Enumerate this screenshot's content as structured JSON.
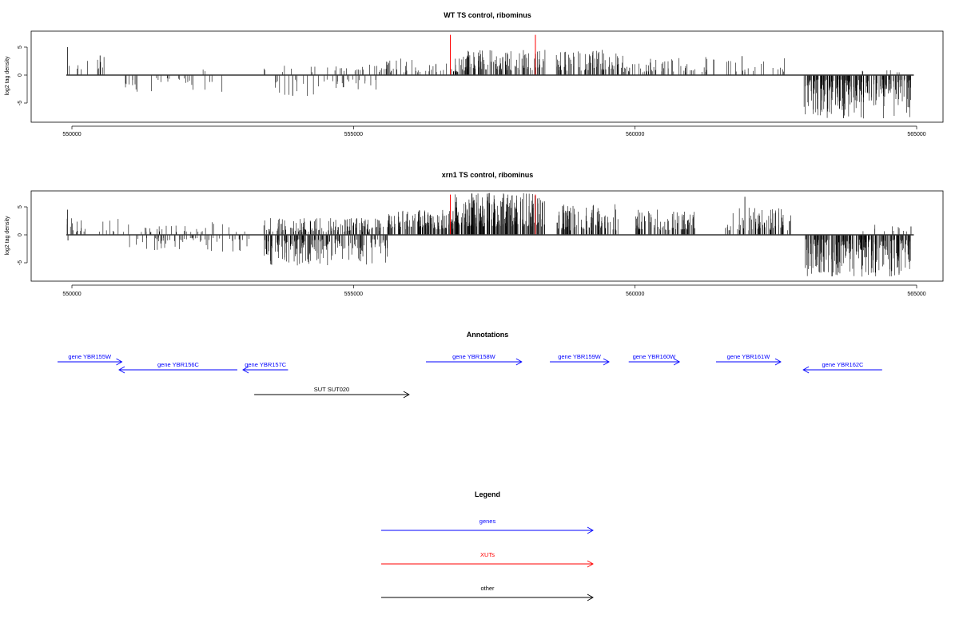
{
  "chart_data": [
    {
      "type": "bar",
      "title": "WT TS control, ribominus",
      "xlabel": "",
      "ylabel": "log2 tag density",
      "xlim": [
        549850,
        564950
      ],
      "ylim": [
        -8,
        7.5
      ],
      "x_ticks": [
        550000,
        555000,
        560000,
        565000
      ],
      "x_tick_labels": [
        "550000",
        "555000",
        "560000",
        "565000"
      ],
      "y_ticks": [
        -5,
        0,
        5
      ],
      "y_tick_labels": [
        "-5",
        "0",
        "5"
      ],
      "grid": false,
      "density_segments": [
        {
          "start": 549900,
          "end": 550700,
          "sign": 1,
          "density": 0.22,
          "min": 1,
          "max": 3.5
        },
        {
          "start": 550900,
          "end": 552700,
          "sign": -1,
          "density": 0.22,
          "min": 0.5,
          "max": 3
        },
        {
          "start": 552300,
          "end": 552400,
          "sign": 1,
          "density": 0.3,
          "min": 0.5,
          "max": 1
        },
        {
          "start": 553500,
          "end": 555400,
          "sign": -1,
          "density": 0.25,
          "min": 0.8,
          "max": 3.8
        },
        {
          "start": 553400,
          "end": 555600,
          "sign": 1,
          "density": 0.18,
          "min": 0.5,
          "max": 2
        },
        {
          "start": 555500,
          "end": 556900,
          "sign": 1,
          "density": 0.5,
          "min": 0.5,
          "max": 3
        },
        {
          "start": 556900,
          "end": 558400,
          "sign": 1,
          "density": 1.1,
          "min": 0.8,
          "max": 4.5
        },
        {
          "start": 558600,
          "end": 559700,
          "sign": 1,
          "density": 1.0,
          "min": 0.8,
          "max": 4.5
        },
        {
          "start": 559700,
          "end": 560900,
          "sign": 1,
          "density": 0.55,
          "min": 0.5,
          "max": 3.5
        },
        {
          "start": 560900,
          "end": 562700,
          "sign": 1,
          "density": 0.25,
          "min": 0.5,
          "max": 3.3
        },
        {
          "start": 563000,
          "end": 564900,
          "sign": -1,
          "density": 1.6,
          "min": 0.8,
          "max": 7.8
        },
        {
          "start": 564000,
          "end": 564900,
          "sign": 1,
          "density": 0.1,
          "min": 0.5,
          "max": 1
        }
      ],
      "spikes": [
        {
          "x": 549920,
          "y": 5
        },
        {
          "x": 550500,
          "y": 3.5
        },
        {
          "x": 553920,
          "y": -3.7
        },
        {
          "x": 556720,
          "y": 7.2,
          "color": "#ff0000"
        },
        {
          "x": 558230,
          "y": 7.2,
          "color": "#ff0000"
        },
        {
          "x": 561900,
          "y": 3.4
        },
        {
          "x": 563700,
          "y": -7.7
        }
      ]
    },
    {
      "type": "bar",
      "title": "xrn1 TS control, ribominus",
      "xlabel": "",
      "ylabel": "log2 tag density",
      "xlim": [
        549850,
        564950
      ],
      "ylim": [
        -8,
        7.5
      ],
      "x_ticks": [
        550000,
        555000,
        560000,
        565000
      ],
      "x_tick_labels": [
        "550000",
        "555000",
        "560000",
        "565000"
      ],
      "y_ticks": [
        -5,
        0,
        5
      ],
      "y_tick_labels": [
        "-5",
        "0",
        "5"
      ],
      "grid": false,
      "density_segments": [
        {
          "start": 549900,
          "end": 551000,
          "sign": 1,
          "density": 0.28,
          "min": 0.5,
          "max": 3
        },
        {
          "start": 551000,
          "end": 553200,
          "sign": -1,
          "density": 0.38,
          "min": 0.5,
          "max": 3
        },
        {
          "start": 551000,
          "end": 553200,
          "sign": 1,
          "density": 0.2,
          "min": 0.5,
          "max": 2.5
        },
        {
          "start": 553400,
          "end": 555600,
          "sign": -1,
          "density": 1.1,
          "min": 0.8,
          "max": 5.5
        },
        {
          "start": 553400,
          "end": 555600,
          "sign": 1,
          "density": 0.9,
          "min": 0.5,
          "max": 3
        },
        {
          "start": 555600,
          "end": 556800,
          "sign": 1,
          "density": 1.5,
          "min": 1,
          "max": 4.5
        },
        {
          "start": 556800,
          "end": 558400,
          "sign": 1,
          "density": 2.0,
          "min": 1.5,
          "max": 7.5
        },
        {
          "start": 558600,
          "end": 559700,
          "sign": 1,
          "density": 1.2,
          "min": 0.8,
          "max": 5.5
        },
        {
          "start": 560000,
          "end": 561100,
          "sign": 1,
          "density": 1.1,
          "min": 0.8,
          "max": 4.5
        },
        {
          "start": 561600,
          "end": 562800,
          "sign": 1,
          "density": 0.9,
          "min": 0.8,
          "max": 5
        },
        {
          "start": 563000,
          "end": 564900,
          "sign": -1,
          "density": 1.8,
          "min": 0.8,
          "max": 7.5
        },
        {
          "start": 564000,
          "end": 564900,
          "sign": 1,
          "density": 0.15,
          "min": 0.5,
          "max": 2
        }
      ],
      "spikes": [
        {
          "x": 549920,
          "y": 4.5
        },
        {
          "x": 549930,
          "y": -1
        },
        {
          "x": 556720,
          "y": 7.2,
          "color": "#ff0000"
        },
        {
          "x": 558230,
          "y": 7.2,
          "color": "#ff0000"
        },
        {
          "x": 557100,
          "y": 7.4
        },
        {
          "x": 561950,
          "y": 6.8
        },
        {
          "x": 563500,
          "y": -7.4
        },
        {
          "x": 564900,
          "y": 1.5
        }
      ]
    }
  ],
  "annotations": {
    "title": "Annotations",
    "features": [
      {
        "label": "gene YBR155W",
        "start": 549900,
        "end": 551100,
        "strand": "+",
        "row": 0,
        "color": "#0000ff"
      },
      {
        "label": "gene YBR156C",
        "start": 551050,
        "end": 553150,
        "strand": "-",
        "row": 1,
        "color": "#0000ff"
      },
      {
        "label": "gene YBR157C",
        "start": 553250,
        "end": 554050,
        "strand": "-",
        "row": 1,
        "color": "#0000ff"
      },
      {
        "label": "gene YBR158W",
        "start": 556500,
        "end": 558200,
        "strand": "+",
        "row": 0,
        "color": "#0000ff"
      },
      {
        "label": "gene YBR159W",
        "start": 558700,
        "end": 559750,
        "strand": "+",
        "row": 0,
        "color": "#0000ff"
      },
      {
        "label": "gene YBR160W",
        "start": 560100,
        "end": 561000,
        "strand": "+",
        "row": 0,
        "color": "#0000ff"
      },
      {
        "label": "gene YBR161W",
        "start": 561650,
        "end": 562800,
        "strand": "+",
        "row": 0,
        "color": "#0000ff"
      },
      {
        "label": "gene YBR162C",
        "start": 563200,
        "end": 564600,
        "strand": "-",
        "row": 1,
        "color": "#0000ff"
      },
      {
        "label": "SUT SUT020",
        "start": 553450,
        "end": 556200,
        "strand": "+",
        "row": 2,
        "color": "#000000"
      }
    ]
  },
  "legend": {
    "title": "Legend",
    "items": [
      {
        "label": "genes",
        "color": "#0000ff"
      },
      {
        "label": "XUTs",
        "color": "#ff0000"
      },
      {
        "label": "other",
        "color": "#000000"
      }
    ]
  }
}
